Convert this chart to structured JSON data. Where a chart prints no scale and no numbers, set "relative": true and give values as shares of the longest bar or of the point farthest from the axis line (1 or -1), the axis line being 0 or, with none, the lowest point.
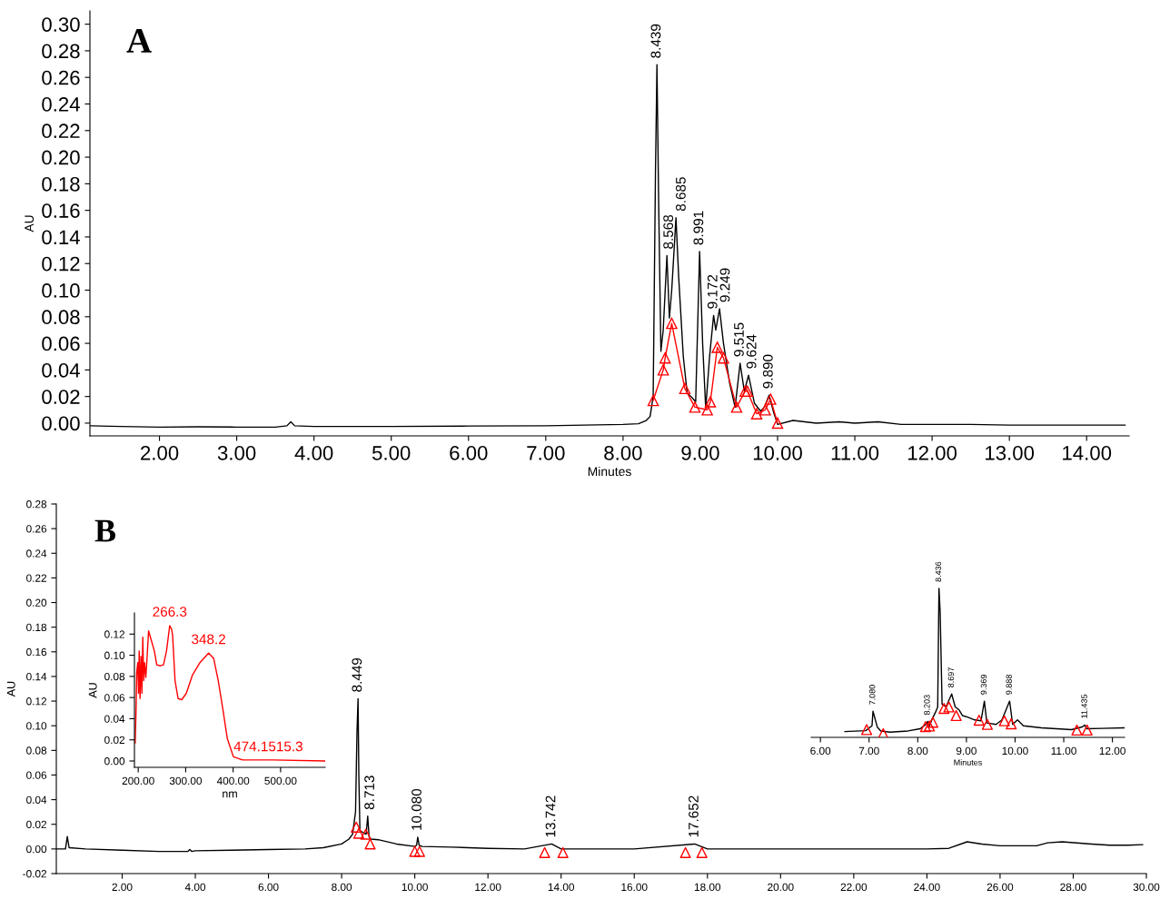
{
  "chart_data": [
    {
      "type": "line",
      "xlabel": "Minutes",
      "ylabel": "AU",
      "xlim": [
        1.1,
        14.55
      ],
      "ylim": [
        -0.0096,
        0.31
      ],
      "xticks": [
        {
          "value": 2,
          "label": "2.00"
        },
        {
          "value": 3,
          "label": "3.00"
        },
        {
          "value": 4,
          "label": "4.00"
        },
        {
          "value": 5,
          "label": "5.00"
        },
        {
          "value": 6,
          "label": "6.00"
        },
        {
          "value": 7,
          "label": "7.00"
        },
        {
          "value": 8,
          "label": "8.00"
        },
        {
          "value": 9,
          "label": "9.00"
        },
        {
          "value": 10,
          "label": "10.00"
        },
        {
          "value": 11,
          "label": "11.00"
        },
        {
          "value": 12,
          "label": "12.00"
        },
        {
          "value": 13,
          "label": "13.00"
        },
        {
          "value": 14,
          "label": "14.00"
        }
      ],
      "yticks": [
        {
          "value": 0,
          "label": "0.00"
        },
        {
          "value": 0.02,
          "label": "0.02"
        },
        {
          "value": 0.04,
          "label": "0.04"
        },
        {
          "value": 0.06,
          "label": "0.06"
        },
        {
          "value": 0.08,
          "label": "0.08"
        },
        {
          "value": 0.1,
          "label": "0.10"
        },
        {
          "value": 0.12,
          "label": "0.12"
        },
        {
          "value": 0.14,
          "label": "0.14"
        },
        {
          "value": 0.16,
          "label": "0.16"
        },
        {
          "value": 0.18,
          "label": "0.18"
        },
        {
          "value": 0.2,
          "label": "0.20"
        },
        {
          "value": 0.22,
          "label": "0.22"
        },
        {
          "value": 0.24,
          "label": "0.24"
        },
        {
          "value": 0.26,
          "label": "0.26"
        },
        {
          "value": 0.28,
          "label": "0.28"
        },
        {
          "value": 0.3,
          "label": "0.30"
        }
      ],
      "series": [
        {
          "color": "#000000",
          "marker": "none",
          "x": [
            1.1,
            1.5,
            2.0,
            2.5,
            3.0,
            3.5,
            3.65,
            3.7,
            3.75,
            4.0,
            5.0,
            6.0,
            7.0,
            7.5,
            8.0,
            8.2,
            8.3,
            8.35,
            8.39,
            8.42,
            8.439,
            8.46,
            8.49,
            8.52,
            8.568,
            8.6,
            8.63,
            8.685,
            8.72,
            8.78,
            8.83,
            8.88,
            8.94,
            8.991,
            9.03,
            9.07,
            9.12,
            9.172,
            9.2,
            9.249,
            9.3,
            9.38,
            9.45,
            9.515,
            9.57,
            9.624,
            9.7,
            9.78,
            9.83,
            9.89,
            9.95,
            10.0,
            10.2,
            10.5,
            10.8,
            11.0,
            11.3,
            11.6,
            12.0,
            12.5,
            13.0,
            13.5,
            14.0,
            14.5
          ],
          "values": [
            -0.002,
            -0.0025,
            -0.003,
            -0.0028,
            -0.003,
            -0.003,
            -0.002,
            0.001,
            -0.002,
            -0.0025,
            -0.0025,
            -0.0022,
            -0.002,
            -0.0015,
            -0.001,
            -0.0005,
            0.002,
            0.005,
            0.02,
            0.19,
            0.2695,
            0.17,
            0.054,
            0.07,
            0.126,
            0.079,
            0.1,
            0.1545,
            0.11,
            0.05,
            0.0225,
            0.02,
            0.016,
            0.129,
            0.06,
            0.011,
            0.05,
            0.081,
            0.07,
            0.086,
            0.06,
            0.03,
            0.012,
            0.045,
            0.024,
            0.036,
            0.015,
            0.009,
            0.012,
            0.021,
            0.008,
            -0.001,
            0.002,
            0.0,
            0.001,
            0.0,
            0.001,
            -0.001,
            -0.001,
            -0.001,
            -0.0015,
            -0.0015,
            -0.0015,
            -0.0015
          ]
        },
        {
          "type": "line",
          "color": "#ff0000",
          "marker": "triangle",
          "x": [
            8.39,
            8.52,
            8.545,
            8.63,
            8.8,
            8.93,
            9.09,
            9.13,
            9.22,
            9.3,
            9.47,
            9.58,
            9.61,
            9.73,
            9.84,
            9.91,
            10.0
          ],
          "values": [
            0.017,
            0.04,
            0.049,
            0.075,
            0.026,
            0.012,
            0.01,
            0.016,
            0.057,
            0.049,
            0.012,
            0.024,
            0.024,
            0.007,
            0.01,
            0.018,
            0.0
          ]
        }
      ],
      "annotations": [
        "A",
        {
          "text": "8.439",
          "x": 8.439,
          "y": 0.2695
        },
        {
          "text": "8.568",
          "x": 8.568,
          "y": 0.126
        },
        {
          "text": "8.685",
          "x": 8.685,
          "y": 0.1545
        },
        {
          "text": "8.991",
          "x": 8.991,
          "y": 0.129
        },
        {
          "text": "9.172",
          "x": 9.172,
          "y": 0.081
        },
        {
          "text": "9.249",
          "x": 9.249,
          "y": 0.086
        },
        {
          "text": "9.515",
          "x": 9.515,
          "y": 0.045
        },
        {
          "text": "9.624",
          "x": 9.624,
          "y": 0.036
        },
        {
          "text": "9.890",
          "x": 9.89,
          "y": 0.021
        }
      ]
    },
    {
      "type": "line",
      "ylabel": "AU",
      "xlim": [
        0.2,
        30.0
      ],
      "ylim": [
        -0.02,
        0.28
      ],
      "xticks": [
        {
          "value": 2,
          "label": "2.00"
        },
        {
          "value": 4,
          "label": "4.00"
        },
        {
          "value": 6,
          "label": "6.00"
        },
        {
          "value": 8,
          "label": "8.00"
        },
        {
          "value": 10,
          "label": "10.00"
        },
        {
          "value": 12,
          "label": "12.00"
        },
        {
          "value": 14,
          "label": "14.00"
        },
        {
          "value": 16,
          "label": "16.00"
        },
        {
          "value": 18,
          "label": "18.00"
        },
        {
          "value": 20,
          "label": "20.00"
        },
        {
          "value": 22,
          "label": "22.00"
        },
        {
          "value": 24,
          "label": "24.00"
        },
        {
          "value": 26,
          "label": "26.00"
        },
        {
          "value": 28,
          "label": "28.00"
        },
        {
          "value": 30,
          "label": "30.00"
        }
      ],
      "yticks": [
        {
          "value": -0.02,
          "label": "-0.02"
        },
        {
          "value": 0,
          "label": "0.00"
        },
        {
          "value": 0.02,
          "label": "0.02"
        },
        {
          "value": 0.04,
          "label": "0.04"
        },
        {
          "value": 0.06,
          "label": "0.06"
        },
        {
          "value": 0.08,
          "label": "0.08"
        },
        {
          "value": 0.1,
          "label": "0.10"
        },
        {
          "value": 0.12,
          "label": "0.12"
        },
        {
          "value": 0.14,
          "label": "0.14"
        },
        {
          "value": 0.16,
          "label": "0.16"
        },
        {
          "value": 0.18,
          "label": "0.18"
        },
        {
          "value": 0.2,
          "label": "0.20"
        },
        {
          "value": 0.22,
          "label": "0.22"
        },
        {
          "value": 0.24,
          "label": "0.24"
        },
        {
          "value": 0.26,
          "label": "0.26"
        },
        {
          "value": 0.28,
          "label": "0.28"
        }
      ],
      "series": [
        {
          "color": "#000000",
          "marker": "none",
          "x": [
            0.2,
            0.45,
            0.5,
            0.55,
            1.0,
            2.0,
            3.0,
            3.8,
            3.85,
            3.9,
            4.0,
            5.0,
            6.0,
            7.0,
            7.5,
            8.0,
            8.2,
            8.3,
            8.38,
            8.42,
            8.449,
            8.47,
            8.5,
            8.6,
            8.67,
            8.713,
            8.75,
            8.8,
            9.0,
            9.5,
            10.0,
            10.05,
            10.08,
            10.12,
            10.2,
            11.0,
            12.0,
            13.0,
            13.742,
            14.0,
            16.0,
            17.652,
            18.0,
            20.0,
            22.0,
            24.0,
            24.6,
            25.1,
            25.5,
            26.0,
            27.0,
            27.3,
            27.7,
            28.5,
            29.0,
            29.5,
            29.9
          ],
          "values": [
            0.0,
            0.0,
            0.01,
            0.001,
            0.0,
            -0.001,
            -0.002,
            -0.002,
            -0.0005,
            -0.002,
            -0.0015,
            -0.001,
            -0.0005,
            0.0,
            0.001,
            0.004,
            0.008,
            0.012,
            0.03,
            0.095,
            0.122,
            0.06,
            0.015,
            0.013,
            0.012,
            0.0266,
            0.01,
            0.008,
            0.0075,
            0.004,
            0.002,
            0.003,
            0.0095,
            0.003,
            0.002,
            0.0015,
            0.0005,
            0.0,
            0.004,
            0.0,
            0.0,
            0.004,
            0.0,
            0.0,
            0.0,
            0.0,
            0.0005,
            0.0058,
            0.004,
            0.0026,
            0.0026,
            0.005,
            0.0058,
            0.004,
            0.003,
            0.003,
            0.0035
          ]
        },
        {
          "type": "scatter",
          "color": "#ff0000",
          "marker": "triangle",
          "x": [
            8.4,
            8.47,
            8.66,
            8.78,
            10.0,
            10.13,
            13.55,
            14.05,
            17.4,
            17.85
          ],
          "values": [
            0.0177,
            0.0127,
            0.012,
            0.004,
            -0.002,
            -0.002,
            -0.003,
            -0.003,
            -0.003,
            -0.003
          ]
        }
      ],
      "annotations": [
        "B",
        {
          "text": "8.449",
          "x": 8.449,
          "y": 0.122
        },
        {
          "text": "8.713",
          "x": 8.713,
          "y": 0.0266
        },
        {
          "text": "10.080",
          "x": 10.08,
          "y": 0.0095
        },
        {
          "text": "13.742",
          "x": 13.742,
          "y": 0.004
        },
        {
          "text": "17.652",
          "x": 17.652,
          "y": 0.004
        }
      ]
    },
    {
      "type": "line",
      "xlabel": "nm",
      "ylabel": "AU",
      "xlim": [
        192,
        594
      ],
      "ylim": [
        -0.006,
        0.14
      ],
      "xticks": [
        {
          "value": 200,
          "label": "200.00"
        },
        {
          "value": 300,
          "label": "300.00"
        },
        {
          "value": 400,
          "label": "400.00"
        },
        {
          "value": 500,
          "label": "500.00"
        }
      ],
      "yticks": [
        {
          "value": 0,
          "label": "0.00"
        },
        {
          "value": 0.02,
          "label": "0.02"
        },
        {
          "value": 0.04,
          "label": "0.04"
        },
        {
          "value": 0.06,
          "label": "0.06"
        },
        {
          "value": 0.08,
          "label": "0.08"
        },
        {
          "value": 0.1,
          "label": "0.10"
        },
        {
          "value": 0.12,
          "label": "0.12"
        }
      ],
      "series": [
        {
          "color": "#ff0000",
          "marker": "none",
          "x": [
            193.6,
            195.5,
            196.8,
            199,
            200.6,
            202,
            203.8,
            205.8,
            207.7,
            209.6,
            211.5,
            213.5,
            216,
            218,
            221.8,
            227.6,
            234,
            239,
            246.8,
            253.2,
            259.6,
            266.3,
            270,
            272.4,
            277.6,
            284,
            291.7,
            301.3,
            314,
            330,
            348.2,
            359,
            368.6,
            378,
            387.8,
            400.6,
            419.9,
            484,
            594
          ],
          "values": [
            0.017,
            0.05,
            0.084,
            0.093,
            0.064,
            0.104,
            0.059,
            0.099,
            0.064,
            0.117,
            0.076,
            0.093,
            0.079,
            0.093,
            0.123,
            0.114,
            0.104,
            0.091,
            0.09,
            0.091,
            0.104,
            0.128,
            0.125,
            0.119,
            0.076,
            0.059,
            0.058,
            0.064,
            0.081,
            0.093,
            0.102,
            0.097,
            0.076,
            0.05,
            0.021,
            0.004,
            0.001,
            0.001,
            0.0
          ]
        }
      ],
      "annotations": [
        {
          "text": "266.3",
          "x": 266.3,
          "y": 0.128
        },
        {
          "text": "348.2",
          "x": 348.2,
          "y": 0.102
        },
        {
          "text": "474.1515.3",
          "x": 474.1,
          "y": 0.0006
        }
      ]
    },
    {
      "type": "line",
      "xlabel": "Minutes",
      "relative": true,
      "tick_labels": "x",
      "xlim": [
        5.81,
        12.25
      ],
      "xticks": [
        {
          "value": 6,
          "label": "6.00"
        },
        {
          "value": 7,
          "label": "7.00"
        },
        {
          "value": 8,
          "label": "8.00"
        },
        {
          "value": 9,
          "label": "9.00"
        },
        {
          "value": 10,
          "label": "10.00"
        },
        {
          "value": 11,
          "label": "11.00"
        },
        {
          "value": 12,
          "label": "12.00"
        }
      ],
      "series": [
        {
          "color": "#000000",
          "marker": "none",
          "x": [
            6.5,
            6.93,
            7.06,
            7.08,
            7.17,
            7.24,
            7.43,
            7.8,
            8.05,
            8.18,
            8.203,
            8.23,
            8.3,
            8.36,
            8.41,
            8.436,
            8.46,
            8.5,
            8.58,
            8.697,
            8.77,
            8.85,
            8.92,
            9.02,
            9.17,
            9.3,
            9.369,
            9.42,
            9.61,
            9.73,
            9.888,
            9.95,
            10.05,
            10.17,
            10.54,
            11.16,
            11.38,
            11.435,
            11.47,
            11.78,
            12.25
          ],
          "values": [
            0.039,
            0.045,
            0.078,
            0.175,
            0.068,
            0.043,
            0.035,
            0.043,
            0.058,
            0.09,
            0.107,
            0.068,
            0.126,
            0.165,
            0.204,
            1.0,
            0.845,
            0.223,
            0.204,
            0.291,
            0.204,
            0.184,
            0.146,
            0.136,
            0.117,
            0.111,
            0.243,
            0.097,
            0.087,
            0.117,
            0.243,
            0.087,
            0.117,
            0.078,
            0.064,
            0.052,
            0.07,
            0.083,
            0.058,
            0.06,
            0.064
          ]
        },
        {
          "type": "scatter",
          "color": "#ff0000",
          "marker": "triangle",
          "x": [
            6.95,
            7.29,
            8.16,
            8.24,
            8.31,
            8.54,
            8.64,
            8.79,
            9.26,
            9.43,
            9.78,
            9.92,
            11.27,
            11.48
          ],
          "values": [
            0.052,
            0.025,
            0.072,
            0.076,
            0.101,
            0.194,
            0.204,
            0.146,
            0.115,
            0.087,
            0.111,
            0.091,
            0.049,
            0.049
          ]
        }
      ],
      "annotations": [
        {
          "text": "7.080",
          "x": 7.08,
          "y": 0.175
        },
        {
          "text": "8.203",
          "x": 8.203,
          "y": 0.107
        },
        {
          "text": "8.436",
          "x": 8.436,
          "y": 1.0
        },
        {
          "text": "8.697",
          "x": 8.697,
          "y": 0.291
        },
        {
          "text": "9.369",
          "x": 9.369,
          "y": 0.243
        },
        {
          "text": "9.888",
          "x": 9.888,
          "y": 0.243
        },
        {
          "text": "11.435",
          "x": 11.435,
          "y": 0.083
        }
      ]
    }
  ]
}
